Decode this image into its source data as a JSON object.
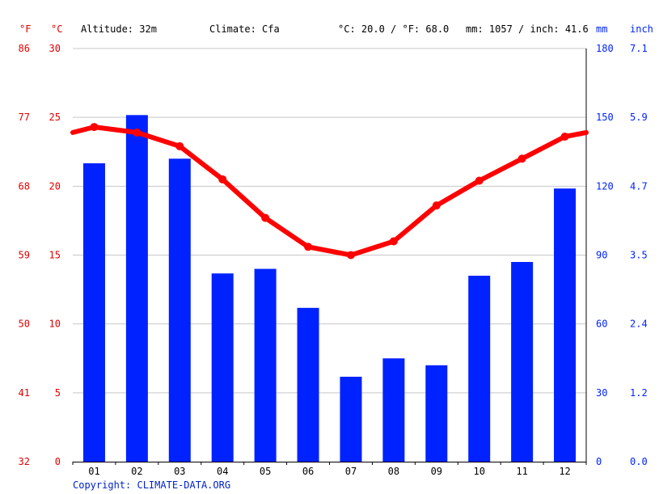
{
  "header": {
    "unit_f": "°F",
    "unit_c": "°C",
    "altitude": "Altitude: 32m",
    "climate": "Climate: Cfa",
    "temp_avg": "°C: 20.0 / °F: 68.0",
    "precip_total": "mm: 1057 / inch: 41.6",
    "unit_mm": "mm",
    "unit_inch": "inch"
  },
  "footer": {
    "copyright": "Copyright: CLIMATE-DATA.ORG"
  },
  "colors": {
    "temperature": "#ff0000",
    "precipitation": "#0022ff",
    "axis_left": "#e00000",
    "axis_right": "#0022ff"
  },
  "chart_data": {
    "type": "bar",
    "categories": [
      "01",
      "02",
      "03",
      "04",
      "05",
      "06",
      "07",
      "08",
      "09",
      "10",
      "11",
      "12"
    ],
    "series": [
      {
        "type": "bar",
        "axis": "precipitation_mm",
        "values": [
          130,
          151,
          132,
          82,
          84,
          67,
          37,
          45,
          42,
          81,
          87,
          119
        ]
      },
      {
        "type": "line",
        "axis": "temperature_c",
        "values": [
          24.3,
          23.9,
          22.9,
          20.5,
          17.7,
          15.6,
          15.0,
          16.0,
          18.6,
          20.4,
          22.0,
          23.6
        ]
      }
    ],
    "temp_line_edges": {
      "start_c": 23.9,
      "end_c": 23.9
    },
    "axes": {
      "temp_f": {
        "ticks": [
          "86",
          "77",
          "68",
          "59",
          "50",
          "41",
          "32"
        ]
      },
      "temp_c": {
        "ticks": [
          "30",
          "25",
          "20",
          "15",
          "10",
          "5",
          "0"
        ],
        "ylim": [
          0,
          30
        ]
      },
      "precip_mm": {
        "ticks": [
          "180",
          "150",
          "120",
          "90",
          "60",
          "30",
          "0"
        ],
        "ylim": [
          0,
          180
        ]
      },
      "precip_inch": {
        "ticks": [
          "7.1",
          "5.9",
          "4.7",
          "3.5",
          "2.4",
          "1.2",
          "0.0"
        ]
      }
    },
    "grid": true
  }
}
